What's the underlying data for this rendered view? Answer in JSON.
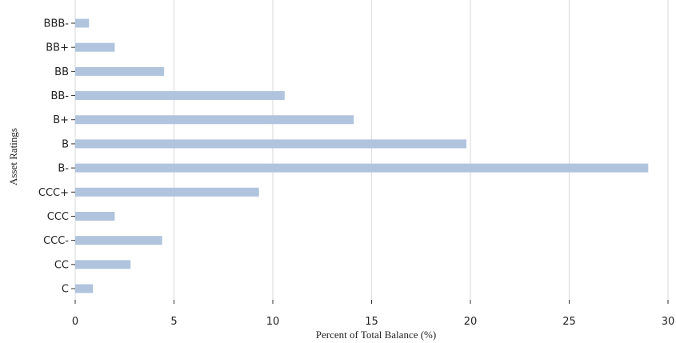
{
  "chart_data": {
    "type": "bar",
    "orientation": "horizontal",
    "title": "",
    "xlabel": "Percent of Total Balance (%)",
    "ylabel": "Asset Ratings",
    "xlim": [
      0,
      30
    ],
    "xticks": [
      0,
      5,
      10,
      15,
      20,
      25,
      30
    ],
    "grid": "vertical",
    "categories": [
      "BBB-",
      "BB+",
      "BB",
      "BB-",
      "B+",
      "B",
      "B-",
      "CCC+",
      "CCC",
      "CCC-",
      "CC",
      "C"
    ],
    "values": [
      0.7,
      2.0,
      4.5,
      10.6,
      14.1,
      19.8,
      29.0,
      9.3,
      2.0,
      4.4,
      2.8,
      0.9
    ],
    "bar_color": "#b0c4de"
  }
}
